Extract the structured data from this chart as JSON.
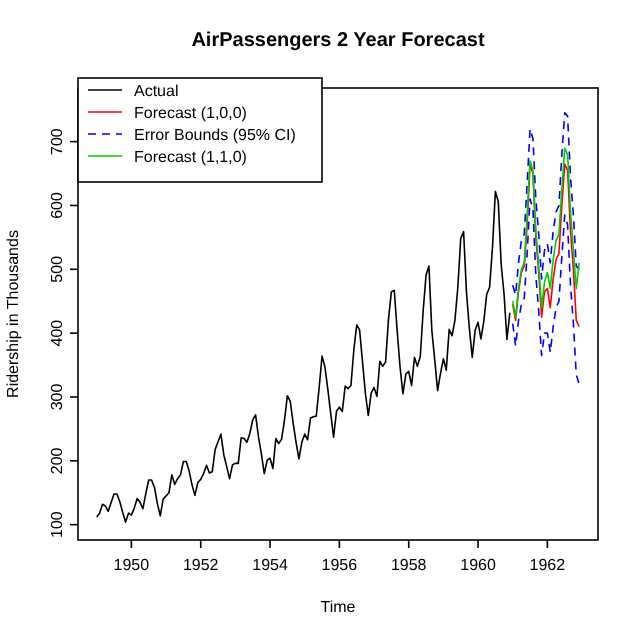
{
  "chart_data": {
    "type": "line",
    "title": "AirPassengers 2 Year Forecast",
    "xlabel": "Time",
    "ylabel": "Ridership in Thousands",
    "xlim": [
      1948.46,
      1963.46
    ],
    "ylim": [
      76,
      784
    ],
    "xticks": [
      1950,
      1952,
      1954,
      1956,
      1958,
      1960,
      1962
    ],
    "yticks": [
      100,
      200,
      300,
      400,
      500,
      600,
      700
    ],
    "grid": false,
    "legend": "top left",
    "line_style": "solid",
    "marker": "none",
    "series": [
      {
        "name": "Actual",
        "color": "#000000",
        "x": [
          1949,
          1949.083,
          1949.167,
          1949.25,
          1949.333,
          1949.417,
          1949.5,
          1949.583,
          1949.667,
          1949.75,
          1949.833,
          1949.917,
          1950,
          1950.083,
          1950.167,
          1950.25,
          1950.333,
          1950.417,
          1950.5,
          1950.583,
          1950.667,
          1950.75,
          1950.833,
          1950.917,
          1951,
          1951.083,
          1951.167,
          1951.25,
          1951.333,
          1951.417,
          1951.5,
          1951.583,
          1951.667,
          1951.75,
          1951.833,
          1951.917,
          1952,
          1952.083,
          1952.167,
          1952.25,
          1952.333,
          1952.417,
          1952.5,
          1952.583,
          1952.667,
          1952.75,
          1952.833,
          1952.917,
          1953,
          1953.083,
          1953.167,
          1953.25,
          1953.333,
          1953.417,
          1953.5,
          1953.583,
          1953.667,
          1953.75,
          1953.833,
          1953.917,
          1954,
          1954.083,
          1954.167,
          1954.25,
          1954.333,
          1954.417,
          1954.5,
          1954.583,
          1954.667,
          1954.75,
          1954.833,
          1954.917,
          1955,
          1955.083,
          1955.167,
          1955.25,
          1955.333,
          1955.417,
          1955.5,
          1955.583,
          1955.667,
          1955.75,
          1955.833,
          1955.917,
          1956,
          1956.083,
          1956.167,
          1956.25,
          1956.333,
          1956.417,
          1956.5,
          1956.583,
          1956.667,
          1956.75,
          1956.833,
          1956.917,
          1957,
          1957.083,
          1957.167,
          1957.25,
          1957.333,
          1957.417,
          1957.5,
          1957.583,
          1957.667,
          1957.75,
          1957.833,
          1957.917,
          1958,
          1958.083,
          1958.167,
          1958.25,
          1958.333,
          1958.417,
          1958.5,
          1958.583,
          1958.667,
          1958.75,
          1958.833,
          1958.917,
          1959,
          1959.083,
          1959.167,
          1959.25,
          1959.333,
          1959.417,
          1959.5,
          1959.583,
          1959.667,
          1959.75,
          1959.833,
          1959.917,
          1960,
          1960.083,
          1960.167,
          1960.25,
          1960.333,
          1960.417,
          1960.5,
          1960.583,
          1960.667,
          1960.75,
          1960.833,
          1960.917
        ],
        "values": [
          112,
          118,
          132,
          129,
          121,
          135,
          148,
          148,
          136,
          119,
          104,
          118,
          115,
          126,
          141,
          135,
          125,
          149,
          170,
          170,
          158,
          133,
          114,
          140,
          145,
          150,
          178,
          163,
          172,
          178,
          199,
          199,
          184,
          162,
          146,
          166,
          171,
          180,
          193,
          181,
          183,
          218,
          230,
          242,
          209,
          191,
          172,
          194,
          196,
          196,
          236,
          235,
          229,
          243,
          264,
          272,
          237,
          211,
          180,
          201,
          204,
          188,
          235,
          227,
          234,
          264,
          302,
          293,
          259,
          229,
          203,
          229,
          242,
          233,
          267,
          269,
          270,
          315,
          364,
          347,
          312,
          274,
          237,
          278,
          284,
          277,
          317,
          313,
          318,
          374,
          413,
          405,
          355,
          306,
          271,
          306,
          315,
          301,
          356,
          348,
          355,
          422,
          465,
          467,
          404,
          347,
          305,
          336,
          340,
          318,
          362,
          348,
          363,
          435,
          491,
          505,
          404,
          359,
          310,
          337,
          360,
          342,
          406,
          396,
          420,
          472,
          548,
          559,
          463,
          407,
          362,
          405,
          417,
          391,
          419,
          461,
          472,
          535,
          622,
          606,
          508,
          461,
          390,
          432
        ]
      },
      {
        "name": "Forecast (1,0,0)",
        "color": "#ff0000",
        "x": [
          1961,
          1961.083,
          1961.167,
          1961.25,
          1961.333,
          1961.417,
          1961.5,
          1961.583,
          1961.667,
          1961.75,
          1961.833,
          1961.917,
          1962,
          1962.083,
          1962.167,
          1962.25,
          1962.333,
          1962.417,
          1962.5,
          1962.583,
          1962.667,
          1962.75,
          1962.833,
          1962.917
        ],
        "values": [
          445,
          420,
          465,
          495,
          505,
          570,
          665,
          650,
          550,
          495,
          425,
          465,
          470,
          440,
          485,
          515,
          525,
          600,
          665,
          655,
          560,
          500,
          420,
          410
        ]
      },
      {
        "name": "Error Bounds (95% CI)",
        "color": "#0000ff",
        "line_style": "dashed",
        "x": [
          1961,
          1961.083,
          1961.167,
          1961.25,
          1961.333,
          1961.417,
          1961.5,
          1961.583,
          1961.667,
          1961.75,
          1961.833,
          1961.917,
          1962,
          1962.083,
          1962.167,
          1962.25,
          1962.333,
          1962.417,
          1962.5,
          1962.583,
          1962.667,
          1962.75,
          1962.833,
          1962.917
        ],
        "values": [
          475,
          460,
          510,
          545,
          555,
          635,
          720,
          705,
          610,
          555,
          485,
          530,
          540,
          510,
          560,
          590,
          600,
          680,
          745,
          740,
          645,
          585,
          505,
          500
        ]
      },
      {
        "color": "#0000ff",
        "line_style": "dashed",
        "x": [
          1961,
          1961.083,
          1961.167,
          1961.25,
          1961.333,
          1961.417,
          1961.5,
          1961.583,
          1961.667,
          1961.75,
          1961.833,
          1961.917,
          1962,
          1962.083,
          1962.167,
          1962.25,
          1962.333,
          1962.417,
          1962.5,
          1962.583,
          1962.667,
          1962.75,
          1962.833,
          1962.917
        ],
        "values": [
          415,
          380,
          420,
          445,
          455,
          525,
          610,
          595,
          490,
          435,
          365,
          400,
          400,
          370,
          410,
          440,
          450,
          520,
          585,
          570,
          475,
          415,
          335,
          320
        ]
      },
      {
        "name": "Forecast (1,1,0)",
        "color": "#00cc00",
        "x": [
          1961,
          1961.083,
          1961.167,
          1961.25,
          1961.333,
          1961.417,
          1961.5,
          1961.583,
          1961.667,
          1961.75,
          1961.833,
          1961.917,
          1962,
          1962.083,
          1962.167,
          1962.25,
          1962.333,
          1962.417,
          1962.5,
          1962.583,
          1962.667,
          1962.75,
          1962.833,
          1962.917
        ],
        "values": [
          450,
          425,
          470,
          500,
          510,
          585,
          670,
          655,
          560,
          505,
          440,
          480,
          495,
          470,
          515,
          545,
          555,
          625,
          690,
          680,
          590,
          530,
          470,
          510
        ]
      }
    ]
  }
}
